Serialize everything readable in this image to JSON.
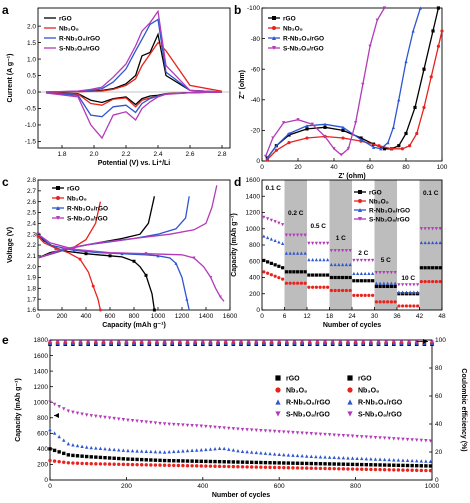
{
  "colors": {
    "rGO": "#000000",
    "Nb3O8": "#e8231e",
    "R": "#2e56cf",
    "S": "#b33ab9",
    "shade": "#bdbdbd"
  },
  "legend_names": [
    "rGO",
    "Nb₃O₈",
    "R-Nb₃O₈/rGO",
    "S-Nb₃O₈/rGO"
  ],
  "chart_data": [
    {
      "panel": "a",
      "type": "line",
      "xlabel": "Potential (V) vs. Li⁺/Li",
      "ylabel": "Current (A g⁻¹)",
      "xlim": [
        1.65,
        2.85
      ],
      "ylim": [
        -1.7,
        2.55
      ],
      "xticks": [
        "1.8",
        "2.0",
        "2.2",
        "2.4",
        "2.6",
        "2.8"
      ],
      "yticks": [
        "-1.5",
        "-1.0",
        "-0.5",
        "0.0",
        "0.5",
        "1.0",
        "1.5",
        "2.0"
      ],
      "legend_position": "top-left",
      "series": [
        {
          "key": "rGO",
          "x": [
            1.7,
            1.9,
            1.98,
            2.05,
            2.12,
            2.2,
            2.26,
            2.3,
            2.35,
            2.4,
            2.45,
            2.6,
            2.8
          ],
          "y": [
            -0.02,
            -0.05,
            -0.25,
            -0.32,
            -0.2,
            -0.15,
            -0.38,
            -0.2,
            -0.12,
            -0.1,
            -0.05,
            -0.02,
            0.0
          ],
          "y_ox": [
            0.0,
            0.01,
            0.03,
            0.05,
            0.1,
            0.25,
            0.5,
            1.1,
            1.2,
            1.75,
            0.5,
            0.05,
            0.0
          ]
        },
        {
          "key": "Nb3O8",
          "x": [
            1.7,
            1.9,
            1.98,
            2.05,
            2.12,
            2.2,
            2.26,
            2.3,
            2.35,
            2.4,
            2.45,
            2.6,
            2.8
          ],
          "y": [
            -0.02,
            -0.06,
            -0.35,
            -0.4,
            -0.22,
            -0.18,
            -0.45,
            -0.25,
            -0.18,
            -0.13,
            -0.05,
            -0.02,
            0.0
          ],
          "y_ox": [
            0.0,
            0.01,
            0.02,
            0.03,
            0.08,
            0.2,
            0.4,
            0.8,
            1.15,
            1.5,
            1.25,
            0.2,
            0.02
          ]
        },
        {
          "key": "R",
          "x": [
            1.7,
            1.9,
            1.98,
            2.05,
            2.12,
            2.2,
            2.26,
            2.3,
            2.35,
            2.4,
            2.45,
            2.6,
            2.8
          ],
          "y": [
            -0.03,
            -0.1,
            -0.7,
            -0.75,
            -0.45,
            -0.4,
            -0.62,
            -0.35,
            -0.2,
            -0.12,
            -0.06,
            -0.02,
            0.0
          ],
          "y_ox": [
            0.0,
            0.02,
            0.05,
            0.1,
            0.3,
            0.7,
            1.25,
            1.6,
            2.05,
            2.2,
            0.6,
            0.05,
            0.0
          ]
        },
        {
          "key": "S",
          "x": [
            1.7,
            1.9,
            1.98,
            2.05,
            2.12,
            2.2,
            2.26,
            2.3,
            2.35,
            2.4,
            2.45,
            2.6,
            2.8
          ],
          "y": [
            -0.03,
            -0.15,
            -1.0,
            -1.4,
            -0.7,
            -0.6,
            -0.85,
            -0.5,
            -0.3,
            -0.15,
            -0.07,
            -0.02,
            0.0
          ],
          "y_ox": [
            0.0,
            0.03,
            0.08,
            0.15,
            0.45,
            0.85,
            1.4,
            1.85,
            2.1,
            2.45,
            0.8,
            0.05,
            0.0
          ]
        }
      ]
    },
    {
      "panel": "b",
      "type": "line",
      "xlabel": "Z' (ohm)",
      "ylabel": "Z'' (ohm)",
      "xlim": [
        0,
        100
      ],
      "ylim": [
        -100,
        0
      ],
      "xticks": [
        "0",
        "20",
        "40",
        "60",
        "80",
        "100"
      ],
      "yticks": [
        "-100",
        "-80",
        "-60",
        "-40",
        "-20",
        "0"
      ],
      "legend_position": "top-left",
      "series": [
        {
          "key": "rGO",
          "x": [
            3,
            8,
            15,
            25,
            35,
            45,
            55,
            62,
            68,
            72,
            76,
            80,
            85,
            90,
            95,
            98
          ],
          "y": [
            -2,
            -10,
            -17,
            -21,
            -22,
            -20,
            -15,
            -11,
            -8,
            -8,
            -10,
            -18,
            -35,
            -60,
            -85,
            -100
          ]
        },
        {
          "key": "Nb3O8",
          "x": [
            3,
            8,
            15,
            25,
            35,
            45,
            55,
            65,
            72,
            78,
            82,
            86,
            90,
            94,
            98,
            100
          ],
          "y": [
            -1,
            -7,
            -12,
            -15,
            -16,
            -15,
            -13,
            -10,
            -8,
            -8,
            -10,
            -18,
            -35,
            -55,
            -75,
            -85
          ]
        },
        {
          "key": "R",
          "x": [
            3,
            8,
            15,
            25,
            35,
            45,
            55,
            62,
            66,
            70,
            73,
            76,
            80,
            84,
            88
          ],
          "y": [
            -2,
            -10,
            -18,
            -23,
            -24,
            -22,
            -14,
            -9,
            -8,
            -12,
            -22,
            -40,
            -65,
            -85,
            -100
          ]
        },
        {
          "key": "S",
          "x": [
            2,
            6,
            12,
            20,
            28,
            35,
            40,
            44,
            48,
            52,
            56,
            60,
            64,
            68
          ],
          "y": [
            -3,
            -15,
            -25,
            -27,
            -24,
            -16,
            -8,
            -4,
            -8,
            -25,
            -50,
            -75,
            -92,
            -100
          ]
        }
      ]
    },
    {
      "panel": "c",
      "type": "line",
      "xlabel": "Capacity (mAh g⁻¹)",
      "ylabel": "Voltage (V)",
      "xlim": [
        0,
        1600
      ],
      "ylim": [
        1.6,
        2.8
      ],
      "xticks": [
        "0",
        "200",
        "400",
        "600",
        "800",
        "1000",
        "1200",
        "1400",
        "1600"
      ],
      "yticks": [
        "1.6",
        "1.7",
        "1.8",
        "1.9",
        "2.0",
        "2.1",
        "2.2",
        "2.3",
        "2.4",
        "2.5",
        "2.6",
        "2.7",
        "2.8"
      ],
      "legend_position": "top-left",
      "series": [
        {
          "key": "rGO",
          "x": [
            0,
            50,
            150,
            250,
            400,
            500,
            600,
            700,
            800,
            850,
            900,
            950,
            970
          ],
          "y": [
            2.3,
            2.24,
            2.17,
            2.14,
            2.12,
            2.11,
            2.1,
            2.09,
            2.05,
            2.0,
            1.92,
            1.75,
            1.6
          ],
          "x_ch": [
            0,
            100,
            300,
            500,
            700,
            850,
            920,
            950,
            970
          ],
          "y_ch": [
            2.08,
            2.13,
            2.18,
            2.22,
            2.26,
            2.3,
            2.4,
            2.55,
            2.65
          ]
        },
        {
          "key": "Nb3O8",
          "x": [
            0,
            50,
            150,
            250,
            350,
            420,
            460,
            500,
            520
          ],
          "y": [
            2.28,
            2.22,
            2.17,
            2.13,
            2.07,
            1.95,
            1.82,
            1.7,
            1.6
          ],
          "x_ch": [
            0,
            150,
            300,
            400,
            480,
            520
          ],
          "y_ch": [
            2.08,
            2.13,
            2.18,
            2.25,
            2.4,
            2.6
          ]
        },
        {
          "key": "R",
          "x": [
            0,
            100,
            300,
            500,
            700,
            900,
            1000,
            1100,
            1150,
            1200,
            1240,
            1260
          ],
          "y": [
            2.3,
            2.2,
            2.15,
            2.13,
            2.12,
            2.11,
            2.1,
            2.08,
            2.03,
            1.9,
            1.7,
            1.6
          ],
          "x_ch": [
            0,
            200,
            400,
            600,
            800,
            1000,
            1150,
            1230,
            1260
          ],
          "y_ch": [
            2.08,
            2.15,
            2.2,
            2.23,
            2.26,
            2.3,
            2.35,
            2.45,
            2.65
          ]
        },
        {
          "key": "S",
          "x": [
            0,
            100,
            300,
            600,
            900,
            1200,
            1300,
            1380,
            1440,
            1480,
            1520,
            1550
          ],
          "y": [
            2.3,
            2.22,
            2.16,
            2.13,
            2.12,
            2.11,
            2.08,
            2.0,
            1.9,
            1.8,
            1.72,
            1.68
          ],
          "x_ch": [
            0,
            200,
            500,
            800,
            1100,
            1300,
            1400,
            1450,
            1490
          ],
          "y_ch": [
            2.08,
            2.16,
            2.22,
            2.26,
            2.3,
            2.34,
            2.4,
            2.55,
            2.75
          ]
        }
      ]
    },
    {
      "panel": "d",
      "type": "scatter",
      "xlabel": "Number of cycles",
      "ylabel": "Capacity (mAh g⁻¹)",
      "xlim": [
        0,
        48
      ],
      "ylim": [
        0,
        1600
      ],
      "xticks": [
        "0",
        "6",
        "12",
        "18",
        "24",
        "30",
        "36",
        "42",
        "48"
      ],
      "yticks": [
        "0",
        "200",
        "400",
        "600",
        "800",
        "1000",
        "1200",
        "1400",
        "1600"
      ],
      "legend_position": "top-right",
      "rate_labels": [
        "0.1 C",
        "0.2 C",
        "0.5 C",
        "1 C",
        "2 C",
        "5 C",
        "10 C",
        "0.1 C"
      ],
      "shaded_ranges": [
        [
          6,
          12
        ],
        [
          18,
          24
        ],
        [
          30,
          36
        ],
        [
          42,
          48
        ]
      ],
      "series": [
        {
          "key": "rGO",
          "segments": [
            520,
            470,
            430,
            400,
            360,
            290,
            200,
            520
          ]
        },
        {
          "key": "Nb3O8",
          "segments": [
            380,
            330,
            280,
            240,
            180,
            100,
            50,
            350
          ]
        },
        {
          "key": "R",
          "segments": [
            820,
            700,
            620,
            560,
            450,
            330,
            220,
            830
          ]
        },
        {
          "key": "S",
          "segments": [
            1050,
            920,
            820,
            730,
            610,
            460,
            310,
            1000
          ]
        }
      ]
    },
    {
      "panel": "e",
      "type": "scatter",
      "xlabel": "Number of cycles",
      "ylabel": "Capacity (mAh g⁻¹)",
      "y2label": "Coulombic efficiency (%)",
      "xlim": [
        0,
        1000
      ],
      "ylim": [
        0,
        1800
      ],
      "y2lim": [
        0,
        100
      ],
      "xticks": [
        "0",
        "200",
        "400",
        "600",
        "800",
        "1000"
      ],
      "yticks": [
        "0",
        "200",
        "400",
        "600",
        "800",
        "1000",
        "1200",
        "1400",
        "1600",
        "1800"
      ],
      "y2ticks": [
        "0",
        "20",
        "40",
        "60",
        "80",
        "100"
      ],
      "legend_position": "center-right",
      "series": [
        {
          "key": "rGO",
          "x": [
            0,
            50,
            100,
            200,
            300,
            400,
            500,
            600,
            700,
            800,
            900,
            1000
          ],
          "y": [
            400,
            320,
            300,
            270,
            250,
            240,
            230,
            220,
            210,
            200,
            190,
            180
          ]
        },
        {
          "key": "Nb3O8",
          "x": [
            0,
            50,
            100,
            200,
            300,
            400,
            500,
            600,
            700,
            800,
            900,
            1000
          ],
          "y": [
            250,
            220,
            210,
            200,
            190,
            180,
            170,
            160,
            150,
            140,
            130,
            120
          ]
        },
        {
          "key": "R",
          "x": [
            0,
            50,
            100,
            200,
            300,
            400,
            450,
            500,
            600,
            700,
            800,
            900,
            1000
          ],
          "y": [
            650,
            460,
            420,
            380,
            360,
            390,
            410,
            370,
            330,
            300,
            280,
            260,
            240
          ]
        },
        {
          "key": "S",
          "x": [
            0,
            50,
            100,
            200,
            300,
            400,
            500,
            600,
            700,
            800,
            900,
            1000
          ],
          "y": [
            1000,
            880,
            830,
            770,
            720,
            690,
            650,
            620,
            590,
            560,
            530,
            500
          ]
        }
      ],
      "ce_series": [
        {
          "key": "rGO",
          "ce": 97
        },
        {
          "key": "Nb3O8",
          "ce": 98
        },
        {
          "key": "R",
          "ce": 97.5
        },
        {
          "key": "S",
          "ce": 98.5
        }
      ]
    }
  ]
}
